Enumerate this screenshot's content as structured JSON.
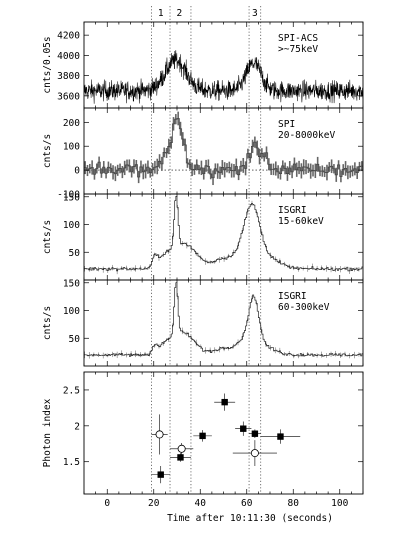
{
  "chart_data": {
    "type": "line",
    "x_axis": {
      "label": "Time after 10:11:30 (seconds)",
      "range": [
        -10,
        110
      ],
      "ticks": [
        0,
        20,
        40,
        60,
        80,
        100
      ]
    },
    "intervals": {
      "boundaries": [
        19,
        27,
        36,
        61,
        66
      ],
      "labels": [
        {
          "text": "1",
          "x": 23
        },
        {
          "text": "2",
          "x": 31
        },
        {
          "text": "3",
          "x": 63.5
        }
      ]
    },
    "panels": [
      {
        "id": "spi-acs",
        "ylabel": "cnts/0.05s",
        "annotation": [
          "SPI-ACS",
          ">~75keV"
        ],
        "ylim": [
          3480,
          4330
        ],
        "yticks": [
          3600,
          3800,
          4000,
          4200
        ],
        "style": "noisy",
        "baseline": 3650,
        "noise": 70,
        "peaks": [
          {
            "center": 29.5,
            "width": 4.5,
            "amp": 300
          },
          {
            "center": 63.0,
            "width": 3.2,
            "amp": 270
          }
        ],
        "zero_line": false
      },
      {
        "id": "spi",
        "ylabel": "cnts/s",
        "annotation": [
          "SPI",
          "20-8000keV"
        ],
        "ylim": [
          -100,
          260
        ],
        "yticks": [
          -100,
          0,
          100,
          200
        ],
        "style": "errorbars",
        "baseline": 0,
        "noise": 35,
        "peaks": [
          {
            "center": 30.5,
            "width": 2.5,
            "amp": 170
          },
          {
            "center": 27.0,
            "width": 3.0,
            "amp": 60
          },
          {
            "center": 64.5,
            "width": 3.5,
            "amp": 90
          }
        ],
        "zero_line": true
      },
      {
        "id": "isgri-low",
        "ylabel": "cnts/s",
        "annotation": [
          "ISGRI",
          "15-60keV"
        ],
        "ylim": [
          0,
          155
        ],
        "yticks": [
          50,
          100,
          150
        ],
        "style": "stepped",
        "baseline": 20,
        "noise": 2,
        "peaks": [
          {
            "center": 20.5,
            "width": 1.0,
            "amp": 18
          },
          {
            "center": 24.5,
            "width": 2.5,
            "amp": 15
          },
          {
            "center": 29.6,
            "width": 0.8,
            "amp": 95
          },
          {
            "center": 33.0,
            "width": 5.5,
            "amp": 45
          },
          {
            "center": 50.0,
            "width": 4.0,
            "amp": 18
          },
          {
            "center": 58.0,
            "width": 3.0,
            "amp": 25
          },
          {
            "center": 62.5,
            "width": 3.0,
            "amp": 85
          },
          {
            "center": 66.0,
            "width": 6.0,
            "amp": 28
          }
        ],
        "zero_line": false
      },
      {
        "id": "isgri-high",
        "ylabel": "cnts/s",
        "annotation": [
          "ISGRI",
          "60-300keV"
        ],
        "ylim": [
          0,
          155
        ],
        "yticks": [
          50,
          100,
          150
        ],
        "style": "stepped",
        "baseline": 20,
        "noise": 2,
        "peaks": [
          {
            "center": 20.5,
            "width": 1.0,
            "amp": 15
          },
          {
            "center": 24.5,
            "width": 2.5,
            "amp": 12
          },
          {
            "center": 29.6,
            "width": 0.8,
            "amp": 95
          },
          {
            "center": 32.5,
            "width": 5.0,
            "amp": 40
          },
          {
            "center": 50.0,
            "width": 4.0,
            "amp": 12
          },
          {
            "center": 58.0,
            "width": 3.0,
            "amp": 20
          },
          {
            "center": 63.0,
            "width": 2.2,
            "amp": 90
          },
          {
            "center": 67.0,
            "width": 5.0,
            "amp": 15
          }
        ],
        "zero_line": false
      },
      {
        "id": "photon-index",
        "ylabel": "Photon index",
        "ylim": [
          1.05,
          2.75
        ],
        "yticks": [
          1.5,
          2,
          2.5
        ],
        "style": "points",
        "series": [
          {
            "name": "filled",
            "marker": "square",
            "points": [
              {
                "x": 23,
                "xerr": 4,
                "y": 1.32,
                "yerr": 0.12
              },
              {
                "x": 31.5,
                "xerr": 4.5,
                "y": 1.56,
                "yerr": 0.06
              },
              {
                "x": 41,
                "xerr": 4,
                "y": 1.86,
                "yerr": 0.08
              },
              {
                "x": 50.5,
                "xerr": 4.5,
                "y": 2.33,
                "yerr": 0.12
              },
              {
                "x": 58.5,
                "xerr": 3.5,
                "y": 1.96,
                "yerr": 0.1
              },
              {
                "x": 63.5,
                "xerr": 2.5,
                "y": 1.89,
                "yerr": 0.06
              },
              {
                "x": 74.5,
                "xerr": 8.5,
                "y": 1.85,
                "yerr": 0.1
              }
            ]
          },
          {
            "name": "open",
            "marker": "circle",
            "points": [
              {
                "x": 22.5,
                "xerr": 3.5,
                "y": 1.88,
                "yerr": 0.28
              },
              {
                "x": 32,
                "xerr": 5,
                "y": 1.68,
                "yerr": 0.08
              },
              {
                "x": 63.5,
                "xerr": 9.5,
                "y": 1.62,
                "yerr": 0.18
              }
            ]
          }
        ]
      }
    ]
  }
}
